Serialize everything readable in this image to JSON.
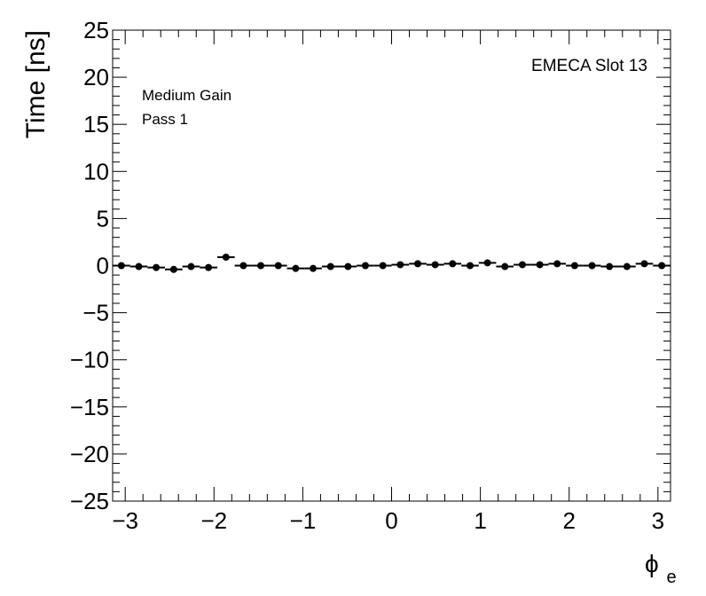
{
  "chart_data": {
    "type": "scatter",
    "annotations": {
      "corner_label": "EMECA Slot 13",
      "gain_label": "Medium Gain",
      "pass_label": "Pass 1"
    },
    "xlabel": "ϕ",
    "xlabel_subscript": "e",
    "ylabel": "Time [ns]",
    "xlim": [
      -3.1416,
      3.1416
    ],
    "ylim": [
      -25,
      25
    ],
    "x_ticks": [
      -3,
      -2,
      -1,
      0,
      1,
      2,
      3
    ],
    "x_tick_labels": [
      "−3",
      "−2",
      "−1",
      "0",
      "1",
      "2",
      "3"
    ],
    "y_ticks": [
      -25,
      -20,
      -15,
      -10,
      -5,
      0,
      5,
      10,
      15,
      20,
      25
    ],
    "y_tick_labels": [
      "−25",
      "−20",
      "−15",
      "−10",
      "−5",
      "0",
      "5",
      "10",
      "15",
      "20",
      "25"
    ],
    "bin_half_width": 0.0982,
    "x": [
      -3.043,
      -2.847,
      -2.651,
      -2.454,
      -2.258,
      -2.062,
      -1.865,
      -1.669,
      -1.473,
      -1.276,
      -1.08,
      -0.884,
      -0.687,
      -0.491,
      -0.295,
      -0.098,
      0.098,
      0.295,
      0.491,
      0.687,
      0.884,
      1.08,
      1.276,
      1.473,
      1.669,
      1.865,
      2.062,
      2.258,
      2.454,
      2.651,
      2.847,
      3.043
    ],
    "values": [
      0.0,
      -0.1,
      -0.2,
      -0.4,
      -0.1,
      -0.2,
      0.9,
      0.0,
      0.0,
      0.0,
      -0.3,
      -0.3,
      -0.1,
      -0.1,
      0.0,
      0.0,
      0.1,
      0.2,
      0.1,
      0.2,
      0.0,
      0.3,
      -0.1,
      0.1,
      0.1,
      0.2,
      0.0,
      0.0,
      -0.1,
      -0.1,
      0.2,
      0.0
    ],
    "grid": false,
    "legend": "none",
    "marker_color": "#000000"
  }
}
